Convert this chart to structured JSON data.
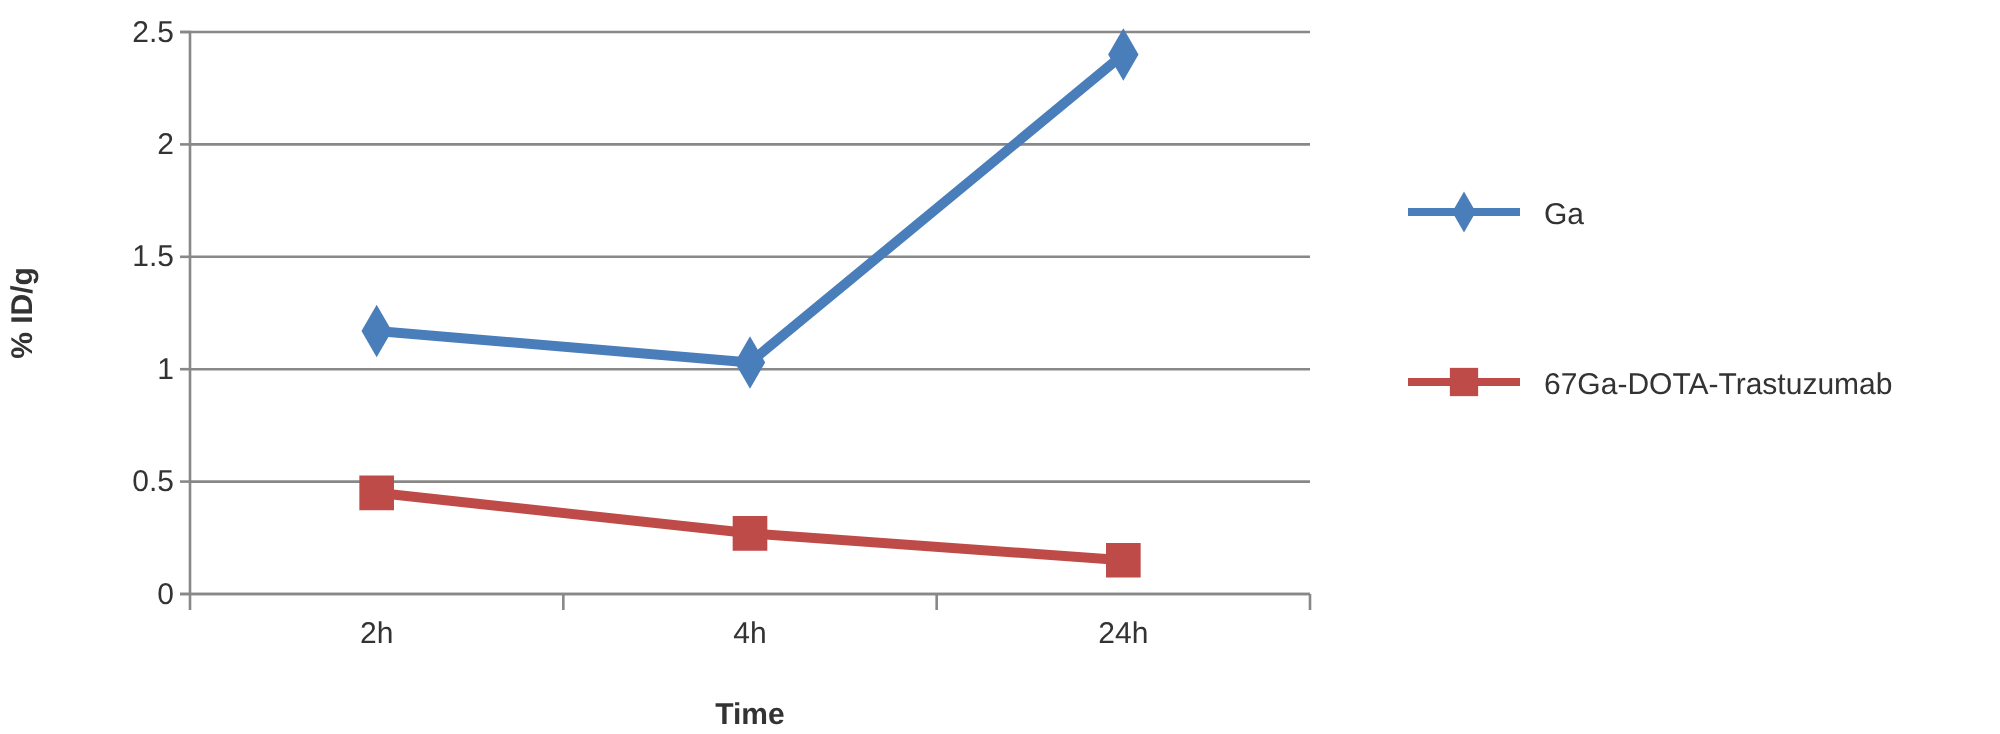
{
  "chart_data": {
    "type": "line",
    "xlabel": "Time",
    "ylabel": "% ID/g",
    "categories": [
      "2h",
      "4h",
      "24h"
    ],
    "series": [
      {
        "name": "Ga",
        "color": "#4a7ebb",
        "marker": "diamond",
        "values": [
          1.17,
          1.03,
          2.4
        ]
      },
      {
        "name": "67Ga-DOTA-Trastuzumab",
        "color": "#be4b48",
        "marker": "square",
        "values": [
          0.45,
          0.27,
          0.15
        ]
      }
    ],
    "ylim": [
      0,
      2.5
    ],
    "yticks": [
      0,
      0.5,
      1,
      1.5,
      2,
      2.5
    ],
    "grid": "y",
    "legend": "right"
  }
}
